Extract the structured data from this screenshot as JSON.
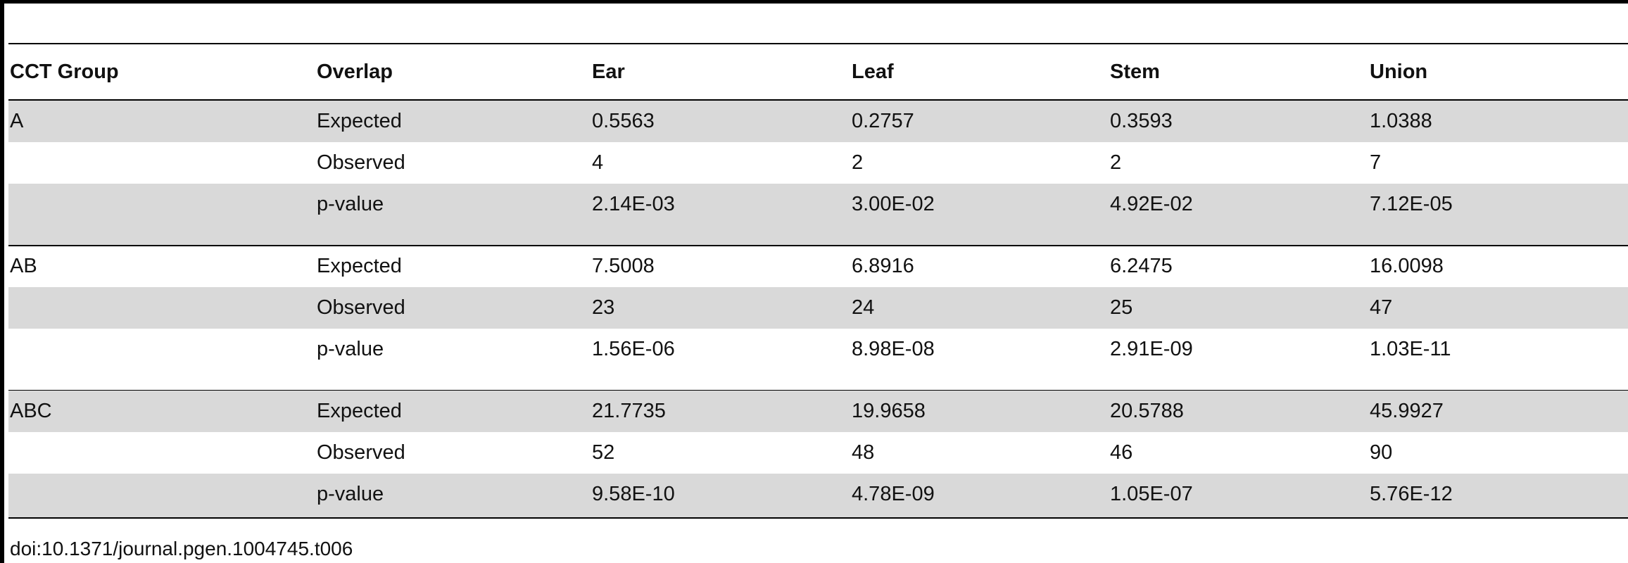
{
  "table": {
    "columns": [
      "CCT Group",
      "Overlap",
      "Ear",
      "Leaf",
      "Stem",
      "Union"
    ],
    "groups": [
      {
        "label": "A",
        "rows": [
          [
            "Expected",
            "0.5563",
            "0.2757",
            "0.3593",
            "1.0388"
          ],
          [
            "Observed",
            "4",
            "2",
            "2",
            "7"
          ],
          [
            "p-value",
            "2.14E-03",
            "3.00E-02",
            "4.92E-02",
            "7.12E-05"
          ]
        ]
      },
      {
        "label": "AB",
        "rows": [
          [
            "Expected",
            "7.5008",
            "6.8916",
            "6.2475",
            "16.0098"
          ],
          [
            "Observed",
            "23",
            "24",
            "25",
            "47"
          ],
          [
            "p-value",
            "1.56E-06",
            "8.98E-08",
            "2.91E-09",
            "1.03E-11"
          ]
        ]
      },
      {
        "label": "ABC",
        "rows": [
          [
            "Expected",
            "21.7735",
            "19.9658",
            "20.5788",
            "45.9927"
          ],
          [
            "Observed",
            "52",
            "48",
            "46",
            "90"
          ],
          [
            "p-value",
            "9.58E-10",
            "4.78E-09",
            "1.05E-07",
            "5.76E-12"
          ]
        ]
      }
    ]
  },
  "footer": "doi:10.1371/journal.pgen.1004745.t006"
}
